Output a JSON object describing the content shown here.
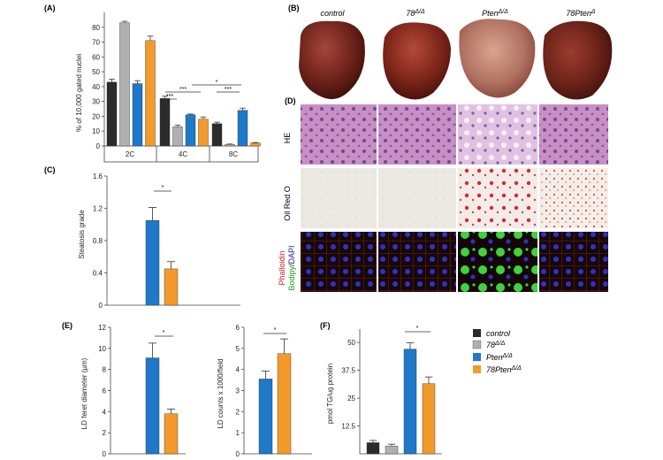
{
  "panel_letters": {
    "A": "(A)",
    "B": "(B)",
    "C": "(C)",
    "D": "(D)",
    "E": "(E)",
    "F": "(F)"
  },
  "colors": {
    "control": "#2b2b2b",
    "d78": "#b0b0b0",
    "pten": "#1f78c8",
    "d78pten": "#f39a2c"
  },
  "liver": {
    "column_labels": [
      {
        "pre": "control",
        "sup": ""
      },
      {
        "pre": "78",
        "sup": "Δ/Δ"
      },
      {
        "pre": "Pten",
        "sup": "Δ/Δ"
      },
      {
        "pre": "78Pten",
        "sup": "Δ"
      }
    ],
    "row_labels": {
      "he": "HE",
      "oil": "Oil Red O",
      "stain_a": "Phalloidin",
      "stain_b": "Bodipy",
      "stain_sep": "/",
      "stain_c": "DAPI"
    }
  },
  "legend": [
    {
      "pre": "control",
      "sup": "",
      "color": "#2b2b2b"
    },
    {
      "pre": "78",
      "sup": "Δ/Δ",
      "color": "#b0b0b0"
    },
    {
      "pre": "Pten",
      "sup": "Δ/Δ",
      "color": "#1f78c8"
    },
    {
      "pre": "78Pten",
      "sup": "Δ/Δ",
      "color": "#f39a2c"
    }
  ],
  "chart_data": [
    {
      "id": "A",
      "type": "bar",
      "ylabel": "% of 10,000 gated nuclei",
      "ylim": [
        0,
        90
      ],
      "yticks": [
        0,
        10,
        20,
        30,
        40,
        50,
        60,
        70,
        80
      ],
      "groups": [
        "2C",
        "4C",
        "8C"
      ],
      "series": [
        {
          "name": "control",
          "values": [
            43,
            32,
            15
          ],
          "errors": [
            2,
            1.5,
            1
          ]
        },
        {
          "name": "78Δ/Δ",
          "values": [
            83,
            13,
            1
          ],
          "errors": [
            1,
            1,
            0.3
          ]
        },
        {
          "name": "PtenΔ/Δ",
          "values": [
            42,
            21,
            24
          ],
          "errors": [
            2,
            0.5,
            1.5
          ]
        },
        {
          "name": "78PtenΔ/Δ",
          "values": [
            71,
            18,
            2
          ],
          "errors": [
            3,
            1.5,
            0.3
          ]
        }
      ],
      "significance": [
        "***",
        "***",
        "***",
        "*"
      ]
    },
    {
      "id": "C",
      "type": "bar",
      "ylabel": "Steatosis grade",
      "ylim": [
        0,
        1.6
      ],
      "yticks": [
        "0",
        "0.4",
        "0.8",
        "1.2",
        "1.6"
      ],
      "series": [
        {
          "name": "PtenΔ/Δ",
          "value": 1.05,
          "error": 0.16
        },
        {
          "name": "78PtenΔ/Δ",
          "value": 0.45,
          "error": 0.09
        }
      ],
      "significance": "*"
    },
    {
      "id": "E1",
      "type": "bar",
      "ylabel": "LD feret diameter (µm)",
      "ylim": [
        0,
        12
      ],
      "yticks": [
        "0",
        "2",
        "4",
        "6",
        "8",
        "10",
        "12"
      ],
      "series": [
        {
          "name": "PtenΔ/Δ",
          "value": 9.1,
          "error": 1.4
        },
        {
          "name": "78PtenΔ/Δ",
          "value": 3.8,
          "error": 0.45
        }
      ],
      "significance": "*"
    },
    {
      "id": "E2",
      "type": "bar",
      "ylabel": "LD counts x 1000/field",
      "ylim": [
        0,
        6
      ],
      "yticks": [
        "0",
        "1",
        "2",
        "3",
        "4",
        "5",
        "6"
      ],
      "series": [
        {
          "name": "PtenΔ/Δ",
          "value": 3.55,
          "error": 0.38
        },
        {
          "name": "78PtenΔ/Δ",
          "value": 4.75,
          "error": 0.7
        }
      ],
      "significance": "*"
    },
    {
      "id": "F",
      "type": "bar",
      "ylabel": "pmol TG/ug protein",
      "ylim": [
        0,
        56
      ],
      "yticks": [
        "12.5",
        "25",
        "37.5",
        "50"
      ],
      "series": [
        {
          "name": "control",
          "value": 5,
          "error": 1
        },
        {
          "name": "78Δ/Δ",
          "value": 3.5,
          "error": 0.8
        },
        {
          "name": "PtenΔ/Δ",
          "value": 47,
          "error": 2.8
        },
        {
          "name": "78PtenΔ/Δ",
          "value": 31.5,
          "error": 3
        }
      ],
      "significance": "*"
    }
  ]
}
